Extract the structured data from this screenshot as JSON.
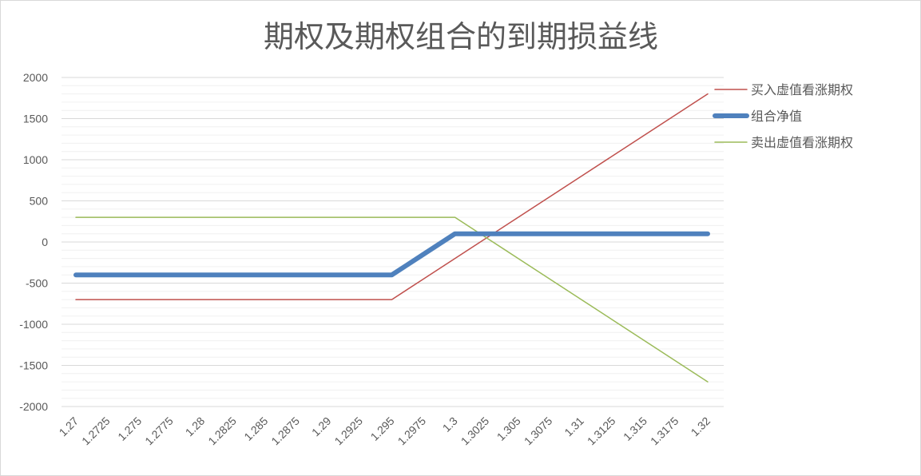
{
  "chart_data": {
    "type": "line",
    "title": "期权及期权组合的到期损益线",
    "xlabel": "",
    "ylabel": "",
    "categories": [
      "1.27",
      "1.2725",
      "1.275",
      "1.2775",
      "1.28",
      "1.2825",
      "1.285",
      "1.2875",
      "1.29",
      "1.2925",
      "1.295",
      "1.2975",
      "1.3",
      "1.3025",
      "1.305",
      "1.3075",
      "1.31",
      "1.3125",
      "1.315",
      "1.3175",
      "1.32"
    ],
    "ylim": [
      -2000,
      2000
    ],
    "yticks": [
      2000,
      1500,
      1000,
      500,
      0,
      -500,
      -1000,
      -1500,
      -2000
    ],
    "grid": true,
    "legend": "right",
    "series": [
      {
        "name": "买入虚值看涨期权",
        "color": "#c0504d",
        "values": [
          -700,
          -700,
          -700,
          -700,
          -700,
          -700,
          -700,
          -700,
          -700,
          -700,
          -700,
          -450,
          -200,
          50,
          300,
          550,
          800,
          1050,
          1300,
          1550,
          1800
        ]
      },
      {
        "name": "组合净值",
        "color": "#4f81bd",
        "values": [
          -400,
          -400,
          -400,
          -400,
          -400,
          -400,
          -400,
          -400,
          -400,
          -400,
          -400,
          -150,
          100,
          100,
          100,
          100,
          100,
          100,
          100,
          100,
          100
        ]
      },
      {
        "name": "卖出虚值看涨期权",
        "color": "#9bbb59",
        "values": [
          300,
          300,
          300,
          300,
          300,
          300,
          300,
          300,
          300,
          300,
          300,
          300,
          300,
          50,
          -200,
          -450,
          -700,
          -950,
          -1200,
          -1450,
          -1700
        ]
      }
    ]
  }
}
